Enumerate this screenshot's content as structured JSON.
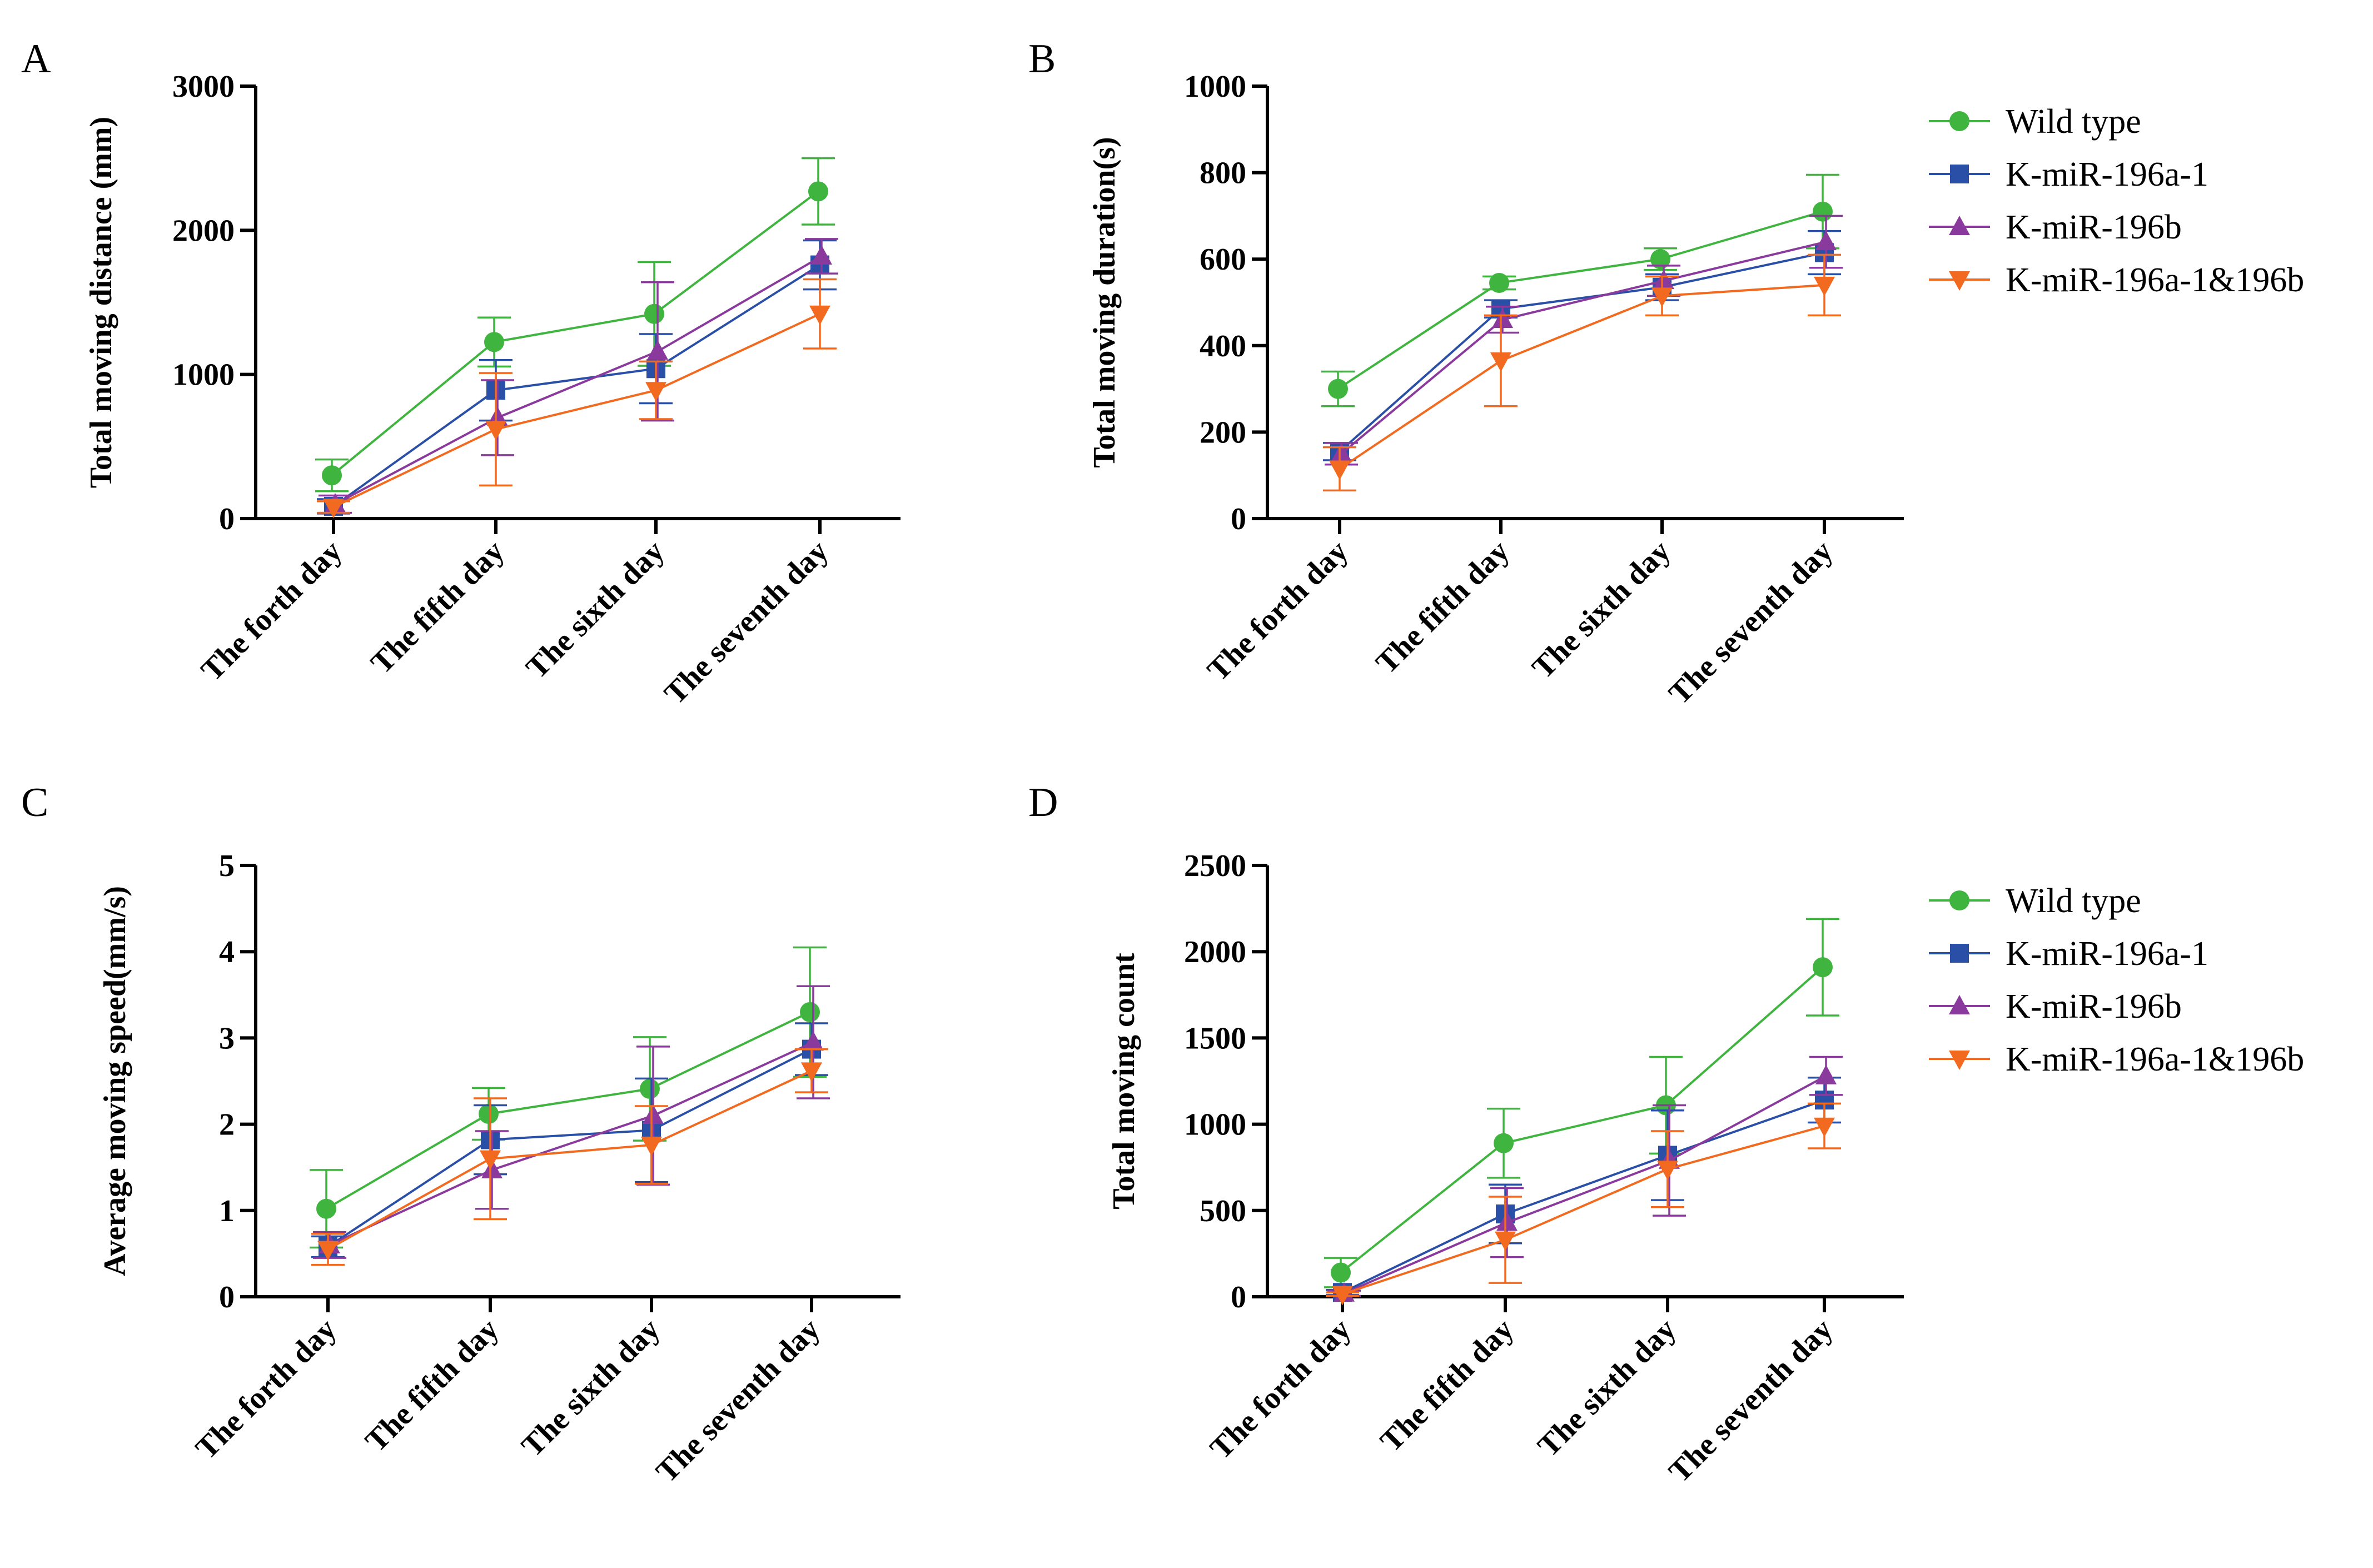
{
  "colors": {
    "wild_type": "#3fb43f",
    "k196a1": "#2a4fa6",
    "k196b": "#8a3a9c",
    "k196ab": "#f26a1f"
  },
  "legend": {
    "top": [
      "Wild type",
      "K-miR-196a-1",
      "K-miR-196b",
      "K-miR-196a-1&196b"
    ],
    "bottom": [
      "Wild type",
      "K-miR-196a-1",
      "K-miR-196b",
      "K-miR-196a-1&196b"
    ]
  },
  "chart_data": [
    {
      "panel": "A",
      "type": "line",
      "ylabel": "Total moving distance (mm)",
      "categories": [
        "The forth day",
        "The fifth day",
        "The sixth day",
        "The seventh day"
      ],
      "ylim": [
        0,
        3000
      ],
      "yticks": [
        0,
        1000,
        2000,
        3000
      ],
      "legend_position": "none",
      "series": [
        {
          "name": "Wild type",
          "color_key": "wild_type",
          "marker": "circle",
          "values": [
            300,
            1225,
            1420,
            2270
          ],
          "errors": [
            110,
            170,
            360,
            230
          ]
        },
        {
          "name": "K-miR-196a-1",
          "color_key": "k196a1",
          "marker": "square",
          "values": [
            85,
            890,
            1040,
            1760
          ],
          "errors": [
            50,
            210,
            240,
            170
          ]
        },
        {
          "name": "K-miR-196b",
          "color_key": "k196b",
          "marker": "triangle-up",
          "values": [
            100,
            700,
            1160,
            1820
          ],
          "errors": [
            60,
            260,
            480,
            120
          ]
        },
        {
          "name": "K-miR-196a-1&196b",
          "color_key": "k196ab",
          "marker": "triangle-down",
          "values": [
            80,
            620,
            890,
            1420
          ],
          "errors": [
            40,
            390,
            200,
            240
          ]
        }
      ]
    },
    {
      "panel": "B",
      "type": "line",
      "ylabel": "Total moving duration(s)",
      "categories": [
        "The forth day",
        "The fifth day",
        "The sixth day",
        "The seventh day"
      ],
      "ylim": [
        0,
        1000
      ],
      "yticks": [
        0,
        200,
        400,
        600,
        800,
        1000
      ],
      "legend_position": "right",
      "series": [
        {
          "name": "Wild type",
          "color_key": "wild_type",
          "marker": "circle",
          "values": [
            300,
            545,
            600,
            710
          ],
          "errors": [
            40,
            15,
            25,
            85
          ]
        },
        {
          "name": "K-miR-196a-1",
          "color_key": "k196a1",
          "marker": "square",
          "values": [
            155,
            485,
            535,
            615
          ],
          "errors": [
            20,
            20,
            30,
            50
          ]
        },
        {
          "name": "K-miR-196b",
          "color_key": "k196b",
          "marker": "triangle-up",
          "values": [
            150,
            460,
            550,
            640
          ],
          "errors": [
            25,
            30,
            35,
            60
          ]
        },
        {
          "name": "K-miR-196a-1&196b",
          "color_key": "k196ab",
          "marker": "triangle-down",
          "values": [
            115,
            365,
            515,
            540
          ],
          "errors": [
            50,
            105,
            45,
            70
          ]
        }
      ]
    },
    {
      "panel": "C",
      "type": "line",
      "ylabel": "Average moving speed(mm/s)",
      "categories": [
        "The forth day",
        "The fifth day",
        "The sixth day",
        "The seventh day"
      ],
      "ylim": [
        0,
        5
      ],
      "yticks": [
        0,
        1,
        2,
        3,
        4,
        5
      ],
      "legend_position": "none",
      "series": [
        {
          "name": "Wild type",
          "color_key": "wild_type",
          "marker": "circle",
          "values": [
            1.02,
            2.12,
            2.41,
            3.3
          ],
          "errors": [
            0.45,
            0.3,
            0.6,
            0.75
          ]
        },
        {
          "name": "K-miR-196a-1",
          "color_key": "k196a1",
          "marker": "square",
          "values": [
            0.58,
            1.82,
            1.93,
            2.87
          ],
          "errors": [
            0.12,
            0.4,
            0.6,
            0.3
          ]
        },
        {
          "name": "K-miR-196b",
          "color_key": "k196b",
          "marker": "triangle-up",
          "values": [
            0.6,
            1.47,
            2.1,
            2.95
          ],
          "errors": [
            0.15,
            0.45,
            0.8,
            0.65
          ]
        },
        {
          "name": "K-miR-196a-1&196b",
          "color_key": "k196ab",
          "marker": "triangle-down",
          "values": [
            0.55,
            1.6,
            1.76,
            2.62
          ],
          "errors": [
            0.18,
            0.7,
            0.45,
            0.25
          ]
        }
      ]
    },
    {
      "panel": "D",
      "type": "line",
      "ylabel": "Total moving count",
      "categories": [
        "The forth day",
        "The fifth day",
        "The sixth day",
        "The seventh day"
      ],
      "ylim": [
        0,
        2500
      ],
      "yticks": [
        0,
        500,
        1000,
        1500,
        2000,
        2500
      ],
      "legend_position": "right",
      "series": [
        {
          "name": "Wild type",
          "color_key": "wild_type",
          "marker": "circle",
          "values": [
            140,
            890,
            1110,
            1910
          ],
          "errors": [
            85,
            200,
            280,
            280
          ]
        },
        {
          "name": "K-miR-196a-1",
          "color_key": "k196a1",
          "marker": "square",
          "values": [
            25,
            480,
            820,
            1140
          ],
          "errors": [
            15,
            170,
            260,
            130
          ]
        },
        {
          "name": "K-miR-196b",
          "color_key": "k196b",
          "marker": "triangle-up",
          "values": [
            20,
            430,
            790,
            1280
          ],
          "errors": [
            15,
            200,
            320,
            110
          ]
        },
        {
          "name": "K-miR-196a-1&196b",
          "color_key": "k196ab",
          "marker": "triangle-down",
          "values": [
            15,
            330,
            740,
            990
          ],
          "errors": [
            10,
            250,
            220,
            130
          ]
        }
      ]
    }
  ]
}
